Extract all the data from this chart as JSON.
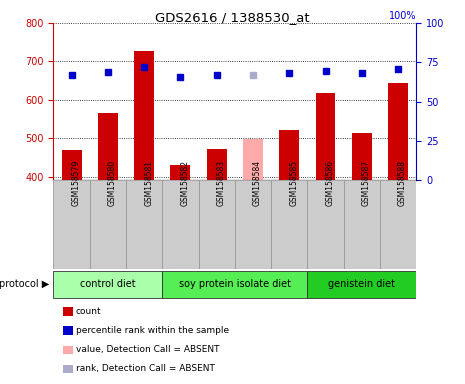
{
  "title": "GDS2616 / 1388530_at",
  "samples": [
    "GSM158579",
    "GSM158580",
    "GSM158581",
    "GSM158582",
    "GSM158583",
    "GSM158584",
    "GSM158585",
    "GSM158586",
    "GSM158587",
    "GSM158588"
  ],
  "bar_values": [
    470,
    567,
    727,
    430,
    473,
    499,
    522,
    617,
    513,
    645
  ],
  "bar_colors": [
    "#cc0000",
    "#cc0000",
    "#cc0000",
    "#cc0000",
    "#cc0000",
    "#ffaaaa",
    "#cc0000",
    "#cc0000",
    "#cc0000",
    "#cc0000"
  ],
  "percentile_values": [
    67,
    69,
    72,
    65.7,
    66.8,
    67.2,
    68.3,
    69.8,
    68.5,
    70.8
  ],
  "percentile_colors": [
    "#0000cc",
    "#0000cc",
    "#0000cc",
    "#0000cc",
    "#0000cc",
    "#aaaacc",
    "#0000cc",
    "#0000cc",
    "#0000cc",
    "#0000cc"
  ],
  "ylim_left": [
    390,
    800
  ],
  "ylim_right": [
    0,
    100
  ],
  "yticks_left": [
    400,
    500,
    600,
    700,
    800
  ],
  "yticks_right": [
    0,
    25,
    50,
    75,
    100
  ],
  "groups": [
    {
      "label": "control diet",
      "start": 0,
      "end": 3,
      "color": "#aaffaa"
    },
    {
      "label": "soy protein isolate diet",
      "start": 3,
      "end": 7,
      "color": "#55ee55"
    },
    {
      "label": "genistein diet",
      "start": 7,
      "end": 10,
      "color": "#22cc22"
    }
  ],
  "protocol_label": "protocol",
  "bg_color": "#cccccc",
  "plot_bg": "#ffffff",
  "left_axis_color": "#cc0000",
  "right_axis_color": "#0000cc",
  "bar_width": 0.55,
  "legend_items": [
    {
      "color": "#cc0000",
      "label": "count"
    },
    {
      "color": "#0000cc",
      "label": "percentile rank within the sample"
    },
    {
      "color": "#ffaaaa",
      "label": "value, Detection Call = ABSENT"
    },
    {
      "color": "#aaaacc",
      "label": "rank, Detection Call = ABSENT"
    }
  ]
}
